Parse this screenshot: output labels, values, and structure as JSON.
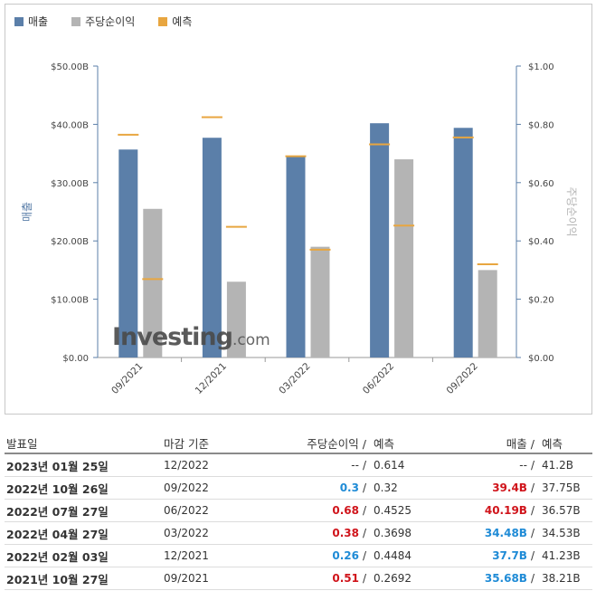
{
  "legend": [
    {
      "label": "매출",
      "color": "#5b7fa9"
    },
    {
      "label": "주당순이익",
      "color": "#b4b4b4"
    },
    {
      "label": "예측",
      "color": "#e8a640"
    }
  ],
  "watermark": {
    "brand": "Investing",
    "suffix": ".com"
  },
  "chart_data": {
    "type": "bar",
    "categories": [
      "09/2021",
      "12/2021",
      "03/2022",
      "06/2022",
      "09/2022"
    ],
    "series": [
      {
        "name": "매출",
        "axis": "left",
        "color": "#5b7fa9",
        "values": [
          35.68,
          37.7,
          34.48,
          40.19,
          39.4
        ]
      },
      {
        "name": "주당순이익",
        "axis": "right",
        "color": "#b4b4b4",
        "values": [
          0.51,
          0.26,
          0.38,
          0.68,
          0.3
        ]
      }
    ],
    "forecast": {
      "name": "예측",
      "color": "#e8a640",
      "revenue": [
        38.21,
        41.23,
        34.53,
        36.57,
        37.75
      ],
      "eps": [
        0.2692,
        0.4484,
        0.3698,
        0.4525,
        0.32
      ]
    },
    "y_left": {
      "label": "매출",
      "ticks": [
        "$0.00",
        "$10.00B",
        "$20.00B",
        "$30.00B",
        "$40.00B",
        "$50.00B"
      ],
      "range": [
        0,
        50
      ]
    },
    "y_right": {
      "label": "주당순이익",
      "ticks": [
        "$0.00",
        "$0.20",
        "$0.40",
        "$0.60",
        "$0.80",
        "$1.00"
      ],
      "range": [
        0,
        1
      ]
    },
    "grid": false
  },
  "table": {
    "headers": {
      "date": "발표일",
      "period": "마감 기준",
      "eps": "주당순이익",
      "eps_forecast": "예측",
      "revenue": "매출",
      "revenue_forecast": "예측",
      "sep": "/"
    },
    "rows": [
      {
        "date": "2023년 01월 25일",
        "period": "12/2022",
        "eps": "--",
        "eps_cls": "neutral",
        "eps_forecast": "0.614",
        "revenue": "--",
        "rev_cls": "neutral",
        "revenue_forecast": "41.2B"
      },
      {
        "date": "2022년 10월 26일",
        "period": "09/2022",
        "eps": "0.3",
        "eps_cls": "pos",
        "eps_forecast": "0.32",
        "revenue": "39.4B",
        "rev_cls": "neg",
        "revenue_forecast": "37.75B"
      },
      {
        "date": "2022년 07월 27일",
        "period": "06/2022",
        "eps": "0.68",
        "eps_cls": "neg",
        "eps_forecast": "0.4525",
        "revenue": "40.19B",
        "rev_cls": "neg",
        "revenue_forecast": "36.57B"
      },
      {
        "date": "2022년 04월 27일",
        "period": "03/2022",
        "eps": "0.38",
        "eps_cls": "neg",
        "eps_forecast": "0.3698",
        "revenue": "34.48B",
        "rev_cls": "pos",
        "revenue_forecast": "34.53B"
      },
      {
        "date": "2022년 02월 03일",
        "period": "12/2021",
        "eps": "0.26",
        "eps_cls": "pos",
        "eps_forecast": "0.4484",
        "revenue": "37.7B",
        "rev_cls": "pos",
        "revenue_forecast": "41.23B"
      },
      {
        "date": "2021년 10월 27일",
        "period": "09/2021",
        "eps": "0.51",
        "eps_cls": "neg",
        "eps_forecast": "0.2692",
        "revenue": "35.68B",
        "rev_cls": "pos",
        "revenue_forecast": "38.21B"
      }
    ]
  }
}
